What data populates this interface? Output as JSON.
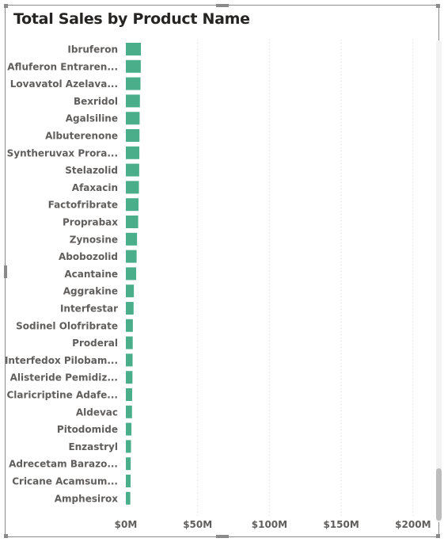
{
  "visual": {
    "title": "Total Sales by Product Name"
  },
  "chart_data": {
    "type": "bar",
    "orientation": "horizontal",
    "title": "Total Sales by Product Name",
    "xlabel": "",
    "ylabel": "",
    "xlim": [
      0,
      210000000
    ],
    "x_ticks": [
      0,
      50000000,
      100000000,
      150000000,
      200000000
    ],
    "x_tick_labels": [
      "$0M",
      "$50M",
      "$100M",
      "$150M",
      "$200M"
    ],
    "grid": "vertical dotted",
    "bar_color": "#4aae8a",
    "categories": [
      "Ibruferon",
      "Afluferon Entraren...",
      "Lovavatol Azelava...",
      "Bexridol",
      "Agalsiline",
      "Albuterenone",
      "Syntheruvax Prora...",
      "Stelazolid",
      "Afaxacin",
      "Factofribrate",
      "Proprabax",
      "Zynosine",
      "Abobozolid",
      "Acantaine",
      "Aggrakine",
      "Interfestar",
      "Sodinel Olofribrate",
      "Proderal",
      "Interfedox Pilobam...",
      "Alisteride Pemidiz...",
      "Claricriptine Adafe...",
      "Aldevac",
      "Pitodomide",
      "Enzastryl",
      "Adrecetam Barazo...",
      "Cricane Acamsum...",
      "Amphesirox"
    ],
    "values": [
      10500000,
      10400000,
      10200000,
      9800000,
      9600000,
      9500000,
      9400000,
      9300000,
      9100000,
      8800000,
      8600000,
      7800000,
      7500000,
      7200000,
      5600000,
      5400000,
      4900000,
      4800000,
      4700000,
      4600000,
      4400000,
      4300000,
      3900000,
      3600000,
      3400000,
      3300000,
      3100000
    ]
  }
}
